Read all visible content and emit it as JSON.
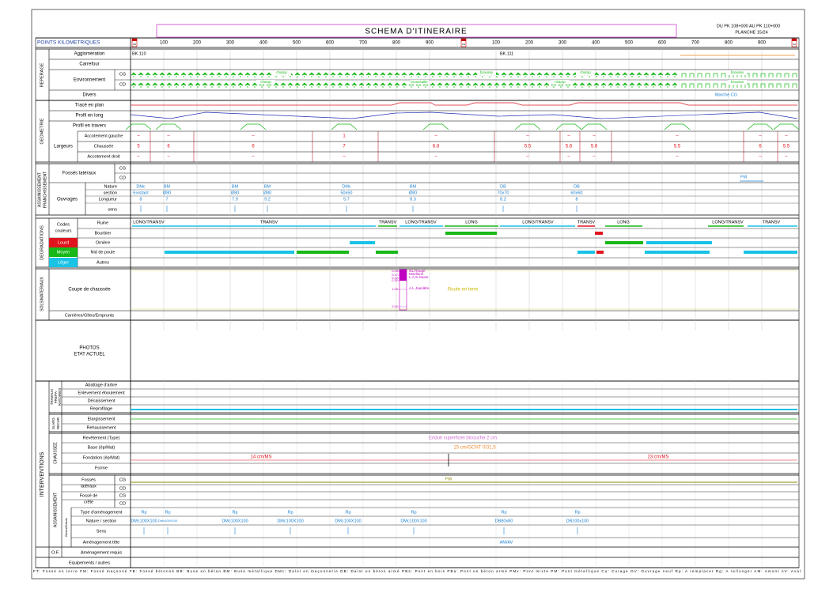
{
  "header": {
    "title": "SCHEMA D'ITINERAIRE",
    "range": "DU PK 108+000 AU PK 110+000",
    "sheet": "PLANCHE 15/24"
  },
  "km": {
    "label": "POINTS KILOMETRIQUES",
    "ticks": [
      "100",
      "200",
      "300",
      "400",
      "500",
      "600",
      "700",
      "800",
      "900"
    ],
    "markers": [
      "108",
      "109",
      "110"
    ]
  },
  "reperage": {
    "title": "REPERAGE",
    "rows": [
      "Agglomération",
      "Carrefour",
      "Environnement",
      "Divers"
    ],
    "sides": [
      "CG",
      "CD"
    ],
    "agglomerations": [
      "BK.110",
      "BK.111"
    ],
    "env_labels": [
      "champ",
      "champ",
      "broussaille",
      "brousse",
      "champ",
      "champ",
      "brousse",
      "brousse"
    ],
    "divers": "Marché CG"
  },
  "geometrie": {
    "title": "GEOMETRIE",
    "rows": [
      "Tracé en plan",
      "Profil en long",
      "Profil en travers"
    ],
    "largeurs": "Largeurs",
    "widths": [
      "Accotement gauche",
      "Chaussée",
      "Accotement droit"
    ],
    "gauche": [
      "–",
      "–",
      "–",
      "1",
      "–",
      "–",
      "–",
      "–",
      "–",
      "–",
      "–"
    ],
    "chaussee": [
      "5",
      "6",
      "6",
      "7",
      "6.8",
      "5.5",
      "5.6",
      "5.6",
      "5.5",
      "6",
      "5.5"
    ],
    "droit": [
      "–",
      "–",
      "–",
      "–",
      "–",
      "–",
      "–",
      "–",
      "–",
      "–",
      "–"
    ]
  },
  "assainissement": {
    "title": [
      "ASSAINISSEMENT",
      "FRANCHISSEMENT"
    ],
    "fosses": "Fossés latéraux",
    "sides": [
      "CG",
      "CD"
    ],
    "fm": "FM",
    "ouvrages": "Ouvrages",
    "rows": [
      "Nature",
      "section",
      "Longueur",
      "sens"
    ],
    "nature": [
      "DMc",
      "BM",
      "BM",
      "BM",
      "DMc",
      "BM",
      "DB",
      "DB"
    ],
    "section": [
      "Existant",
      "Ø80",
      "Ø80",
      "Ø80",
      "50x50",
      "Ø80",
      "70x70",
      "60x60"
    ],
    "longueur": [
      "8",
      "7",
      "7.9",
      "9.2",
      "5.7",
      "8.3",
      "8.2",
      "8"
    ]
  },
  "degradations": {
    "title": "DEGRADATIONS",
    "codes": [
      "Codes",
      "couleurs"
    ],
    "levels": [
      "Lourd",
      "Moyen",
      "Léger"
    ],
    "rows": [
      "Ruine",
      "Bourbier",
      "Ornière",
      "Nid de poule",
      "Autres"
    ],
    "ruine": [
      "LONG/TRANSV",
      "TRANSV",
      "TRANSV",
      "LONG/TRANSV",
      "LONG",
      "LONG/TRANSV",
      "TRANSV",
      "LONG",
      "LONG/TRANSV",
      "TRANSV"
    ]
  },
  "sols": {
    "title": "SOLS/MATERIAUX",
    "rows": [
      "Coupe de chaussée",
      "Carrières/Gîtes/Emprunts"
    ],
    "depths": [
      "0.05",
      "0.17",
      "0.22",
      "0.32",
      "1.00",
      "2.02"
    ],
    "materials": [
      "GL.Rouge",
      "Moellons",
      "L.A.S.Jaune",
      "A.L.Jaunâtre"
    ],
    "ground": "Route en terre"
  },
  "photos": [
    "PHOTOS",
    "ETAT ACTUEL"
  ],
  "interventions": {
    "title": "INTERVENTIONS",
    "travaux": [
      "TRAVAUX",
      "PREPA-",
      "RATOIRES"
    ],
    "travaux_rows": [
      "Abattage d'arbre",
      "Enlèvement éboulement",
      "Décaissement",
      "Reprofilage"
    ],
    "elarg": [
      "ELARG.",
      "RECHR."
    ],
    "elarg_rows": [
      "Elargissement",
      "Rehaussement"
    ],
    "chaussee": "CHAUSSEE",
    "chaussee_rows": [
      "Revêtement (Type)",
      "Base (ép/Mat)",
      "Fondation (ép/Mat)",
      "Forme"
    ],
    "revetement": "Enduit superficiel bicouche 2 cm",
    "base": "15 cm/GCNT 0/31,5",
    "fondation": [
      "14 cm/MS",
      "23 cm/MS"
    ],
    "assain": "ASSAINISSEMENT",
    "fosses": [
      "Fossés",
      "latéraux"
    ],
    "crete": [
      "Fossé de",
      "crête"
    ],
    "sides": [
      "CG",
      "CD"
    ],
    "fm": "FM",
    "buses": "Buses/Dalots",
    "assain_rows": [
      "Type d'aménagement",
      "Nature / section",
      "Sens",
      "Aménagement tête"
    ],
    "types": [
      "Rp",
      "Rp",
      "Rp",
      "Rp",
      "Rp",
      "Rp",
      "Rp",
      "Rp"
    ],
    "natures": [
      "DMc100X100",
      "DMc100X100",
      "DMc100X100",
      "DMc100X100",
      "DMc100X100",
      "DMc100X100",
      "DB80x80",
      "DB100x100"
    ],
    "tete": "AM/AV",
    "of": "O.F.",
    "of_row": "Aménagement requis",
    "equip": "Equipements / autres"
  },
  "legend": "FT: Fossé en terre   FM: Fossé maçonné   FB: Fossé bétonné   BB: Buse en béton   BM: Buse métallique   DMc: Dalot en maçonnerie   DB: Dalot en béton armé   PBs: Pont en bois   PBa: Pont en béton armé   PMx: Pont mixte   PM: Pont métallique   Cu: Curage   OV: Ouvrage neuf   Rp: A remplacer   Rg: A rallonger   AM: Amont   AV: Aval"
}
